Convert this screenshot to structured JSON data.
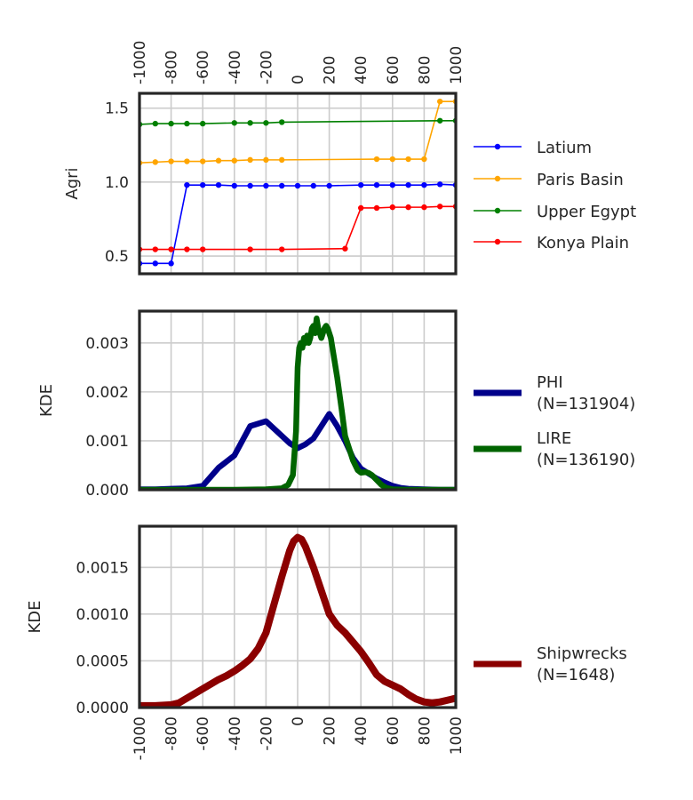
{
  "chart_data": [
    {
      "type": "line",
      "ylabel": "Agri",
      "xlim": [
        -1000,
        1000
      ],
      "ylim": [
        0.38,
        1.6
      ],
      "xticks": [
        "-1000",
        "-800",
        "-600",
        "-400",
        "-200",
        "0",
        "200",
        "400",
        "600",
        "800",
        "1000"
      ],
      "xtick_values": [
        -1000,
        -800,
        -600,
        -400,
        -200,
        0,
        200,
        400,
        600,
        800,
        1000
      ],
      "xticks_position": "top",
      "yticks": [
        "0.5",
        "1.0",
        "1.5"
      ],
      "ytick_values": [
        0.5,
        1.0,
        1.5
      ],
      "grid": true,
      "legend_placement": "right",
      "series": [
        {
          "name": "Latium",
          "color": "#0000ff",
          "x": [
            -1000,
            -900,
            -800,
            -700,
            -600,
            -500,
            -400,
            -300,
            -200,
            -100,
            0,
            100,
            200,
            400,
            500,
            600,
            700,
            800,
            900,
            1000
          ],
          "y": [
            0.45,
            0.45,
            0.45,
            0.98,
            0.98,
            0.98,
            0.975,
            0.975,
            0.975,
            0.975,
            0.975,
            0.975,
            0.975,
            0.98,
            0.98,
            0.98,
            0.98,
            0.98,
            0.985,
            0.98
          ]
        },
        {
          "name": "Paris Basin",
          "color": "#ffa500",
          "x": [
            -1000,
            -900,
            -800,
            -700,
            -600,
            -500,
            -400,
            -300,
            -200,
            -100,
            500,
            600,
            700,
            800,
            900,
            1000
          ],
          "y": [
            1.13,
            1.135,
            1.14,
            1.14,
            1.14,
            1.145,
            1.145,
            1.15,
            1.15,
            1.15,
            1.155,
            1.155,
            1.155,
            1.155,
            1.545,
            1.545
          ]
        },
        {
          "name": "Upper Egypt",
          "color": "#008000",
          "x": [
            -1000,
            -900,
            -800,
            -700,
            -600,
            -400,
            -300,
            -200,
            -100,
            900,
            1000
          ],
          "y": [
            1.39,
            1.395,
            1.395,
            1.395,
            1.395,
            1.4,
            1.4,
            1.4,
            1.405,
            1.415,
            1.415
          ]
        },
        {
          "name": "Konya Plain",
          "color": "#ff0000",
          "x": [
            -1000,
            -900,
            -800,
            -700,
            -600,
            -300,
            -100,
            300,
            400,
            500,
            600,
            700,
            800,
            900,
            1000
          ],
          "y": [
            0.545,
            0.545,
            0.545,
            0.545,
            0.545,
            0.545,
            0.545,
            0.55,
            0.825,
            0.825,
            0.83,
            0.83,
            0.83,
            0.835,
            0.835
          ]
        }
      ]
    },
    {
      "type": "line",
      "ylabel": "KDE",
      "xlim": [
        -1000,
        1000
      ],
      "ylim": [
        0,
        0.00365
      ],
      "xticks_visible": false,
      "yticks": [
        "0.000",
        "0.001",
        "0.002",
        "0.003"
      ],
      "ytick_values": [
        0,
        0.001,
        0.002,
        0.003
      ],
      "grid": true,
      "legend_placement": "right",
      "series": [
        {
          "name": "PHI",
          "count_label": "(N=131904)",
          "color": "#00008b",
          "x": [
            -1000,
            -900,
            -800,
            -700,
            -600,
            -500,
            -400,
            -350,
            -300,
            -250,
            -200,
            -150,
            -100,
            -50,
            0,
            50,
            100,
            150,
            200,
            250,
            300,
            350,
            400,
            450,
            500,
            550,
            600,
            650,
            700,
            800,
            900,
            1000
          ],
          "y": [
            1e-05,
            1e-05,
            2e-05,
            3e-05,
            8e-05,
            0.00045,
            0.0007,
            0.001,
            0.0013,
            0.00135,
            0.0014,
            0.00125,
            0.0011,
            0.00095,
            0.00085,
            0.00093,
            0.00105,
            0.0013,
            0.00155,
            0.0013,
            0.001,
            0.00065,
            0.00043,
            0.00033,
            0.00023,
            0.00015,
            8e-05,
            4e-05,
            2e-05,
            1e-05,
            0.0,
            0.0
          ]
        },
        {
          "name": "LIRE",
          "count_label": "(N=136190)",
          "color": "#006400",
          "x": [
            -1000,
            -600,
            -400,
            -200,
            -100,
            -60,
            -30,
            -10,
            0,
            10,
            20,
            30,
            40,
            50,
            60,
            70,
            80,
            90,
            100,
            110,
            120,
            130,
            140,
            150,
            160,
            170,
            180,
            190,
            200,
            210,
            220,
            230,
            250,
            280,
            300,
            350,
            380,
            400,
            430,
            450,
            470,
            500,
            530,
            560,
            600,
            700,
            1000
          ],
          "y": [
            0.0,
            0.0,
            0.0,
            1e-05,
            3e-05,
            0.0001,
            0.0003,
            0.0012,
            0.0025,
            0.0029,
            0.003,
            0.0029,
            0.0031,
            0.003,
            0.00315,
            0.003,
            0.0031,
            0.0033,
            0.00335,
            0.0032,
            0.0035,
            0.0033,
            0.0032,
            0.0031,
            0.0032,
            0.0033,
            0.00335,
            0.0033,
            0.0032,
            0.0031,
            0.0029,
            0.0027,
            0.0023,
            0.0016,
            0.0011,
            0.0006,
            0.0004,
            0.00035,
            0.00036,
            0.00034,
            0.0003,
            0.0002,
            0.0001,
            4e-05,
            1e-05,
            0.0,
            0.0
          ]
        }
      ]
    },
    {
      "type": "line",
      "ylabel": "KDE",
      "xlim": [
        -1000,
        1000
      ],
      "ylim": [
        0,
        0.00194
      ],
      "xticks": [
        "-1000",
        "-800",
        "-600",
        "-400",
        "-200",
        "0",
        "200",
        "400",
        "600",
        "800",
        "1000"
      ],
      "xtick_values": [
        -1000,
        -800,
        -600,
        -400,
        -200,
        0,
        200,
        400,
        600,
        800,
        1000
      ],
      "xticks_position": "bottom",
      "yticks": [
        "0.0000",
        "0.0005",
        "0.0010",
        "0.0015"
      ],
      "ytick_values": [
        0,
        0.0005,
        0.001,
        0.0015
      ],
      "grid": true,
      "legend_placement": "right",
      "series": [
        {
          "name": "Shipwrecks",
          "count_label": "(N=1648)",
          "color": "#8b0000",
          "x": [
            -1000,
            -900,
            -800,
            -750,
            -700,
            -650,
            -600,
            -550,
            -500,
            -450,
            -400,
            -350,
            -300,
            -250,
            -200,
            -150,
            -100,
            -50,
            -25,
            0,
            25,
            50,
            100,
            150,
            200,
            250,
            300,
            350,
            400,
            450,
            500,
            550,
            600,
            650,
            700,
            750,
            800,
            850,
            900,
            950,
            1000
          ],
          "y": [
            2e-05,
            2e-05,
            3e-05,
            5e-05,
            0.0001,
            0.00015,
            0.0002,
            0.00025,
            0.0003,
            0.00034,
            0.00039,
            0.00045,
            0.00052,
            0.00063,
            0.0008,
            0.0011,
            0.0014,
            0.00168,
            0.00178,
            0.00182,
            0.0018,
            0.00172,
            0.0015,
            0.00125,
            0.001,
            0.00088,
            0.0008,
            0.0007,
            0.0006,
            0.00048,
            0.00035,
            0.00028,
            0.00024,
            0.0002,
            0.00014,
            9e-05,
            6e-05,
            5e-05,
            6e-05,
            8e-05,
            0.0001
          ]
        }
      ]
    }
  ]
}
